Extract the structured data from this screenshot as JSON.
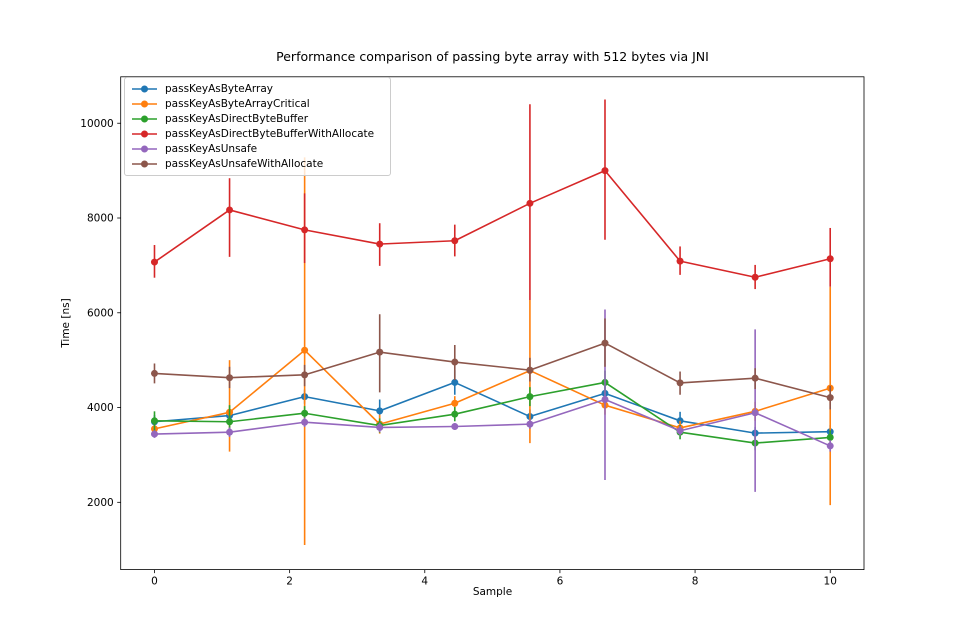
{
  "figure": {
    "title": "Performance comparison of passing byte array with 512 bytes via JNI",
    "xlabel": "Sample",
    "ylabel": "Time [ns]"
  },
  "chart_data": {
    "type": "line",
    "subtype": "errorbar-line-with-markers",
    "title": "Performance comparison of passing byte array with 512 bytes via JNI",
    "xlabel": "Sample",
    "ylabel": "Time [ns]",
    "grid": false,
    "legend_position": "upper left",
    "xlim": [
      -0.5,
      10.5
    ],
    "ylim": [
      580,
      10980
    ],
    "xticks": [
      0,
      2,
      4,
      6,
      8,
      10
    ],
    "yticks": [
      2000,
      4000,
      6000,
      8000,
      10000
    ],
    "x": [
      0,
      1.111,
      2.222,
      3.333,
      4.444,
      5.556,
      6.667,
      7.778,
      8.889,
      10
    ],
    "series": [
      {
        "name": "passKeyAsByteArray",
        "color": "#1f77b4",
        "values": [
          3700,
          3830,
          4230,
          3930,
          4530,
          3810,
          4300,
          3720,
          3460,
          3490
        ],
        "err_low": [
          3560,
          3700,
          4080,
          3670,
          4270,
          3660,
          4100,
          3480,
          3330,
          3350
        ],
        "err_high": [
          3840,
          3960,
          4380,
          4170,
          4790,
          3960,
          4500,
          3910,
          3590,
          3630
        ]
      },
      {
        "name": "passKeyAsByteArrayCritical",
        "color": "#ff7f0e",
        "values": [
          3550,
          3900,
          5210,
          3650,
          4090,
          4780,
          4050,
          3570,
          3920,
          4410
        ],
        "err_low": [
          3430,
          3070,
          1100,
          3450,
          3940,
          3250,
          3850,
          3420,
          3720,
          1940
        ],
        "err_high": [
          3670,
          5000,
          9280,
          3850,
          4240,
          6270,
          4250,
          3720,
          4120,
          6550
        ]
      },
      {
        "name": "passKeyAsDirectByteBuffer",
        "color": "#2ca02c",
        "values": [
          3720,
          3700,
          3880,
          3620,
          3860,
          4230,
          4530,
          3480,
          3250,
          3370
        ],
        "err_low": [
          3420,
          3450,
          3730,
          3470,
          3710,
          4030,
          4280,
          3330,
          3100,
          3220
        ],
        "err_high": [
          3920,
          4050,
          4030,
          3770,
          4010,
          4430,
          4780,
          3630,
          3400,
          3520
        ]
      },
      {
        "name": "passKeyAsDirectByteBufferWithAllocate",
        "color": "#d62728",
        "values": [
          7070,
          8170,
          7750,
          7450,
          7520,
          8310,
          9000,
          7090,
          6750,
          7140
        ],
        "err_low": [
          6740,
          7180,
          7050,
          6990,
          7190,
          6270,
          7540,
          6800,
          6500,
          6550
        ],
        "err_high": [
          7430,
          8840,
          8520,
          7890,
          7860,
          10400,
          10500,
          7400,
          7010,
          7790
        ]
      },
      {
        "name": "passKeyAsUnsafe",
        "color": "#9467bd",
        "values": [
          3440,
          3480,
          3690,
          3580,
          3600,
          3650,
          4170,
          3510,
          3890,
          3190
        ],
        "err_low": [
          3360,
          3380,
          3590,
          3480,
          3530,
          3550,
          2470,
          3410,
          2220,
          3070
        ],
        "err_high": [
          3520,
          3580,
          3790,
          3680,
          3670,
          3750,
          6070,
          3610,
          5650,
          3310
        ]
      },
      {
        "name": "passKeyAsUnsafeWithAllocate",
        "color": "#8c564b",
        "values": [
          4720,
          4630,
          4690,
          5170,
          4960,
          4790,
          5360,
          4520,
          4620,
          4210
        ],
        "err_low": [
          4510,
          4410,
          4450,
          4320,
          4580,
          4550,
          4860,
          4270,
          4390,
          3960
        ],
        "err_high": [
          4930,
          4860,
          4900,
          5970,
          5320,
          5050,
          5880,
          4760,
          4830,
          4460
        ]
      }
    ]
  }
}
